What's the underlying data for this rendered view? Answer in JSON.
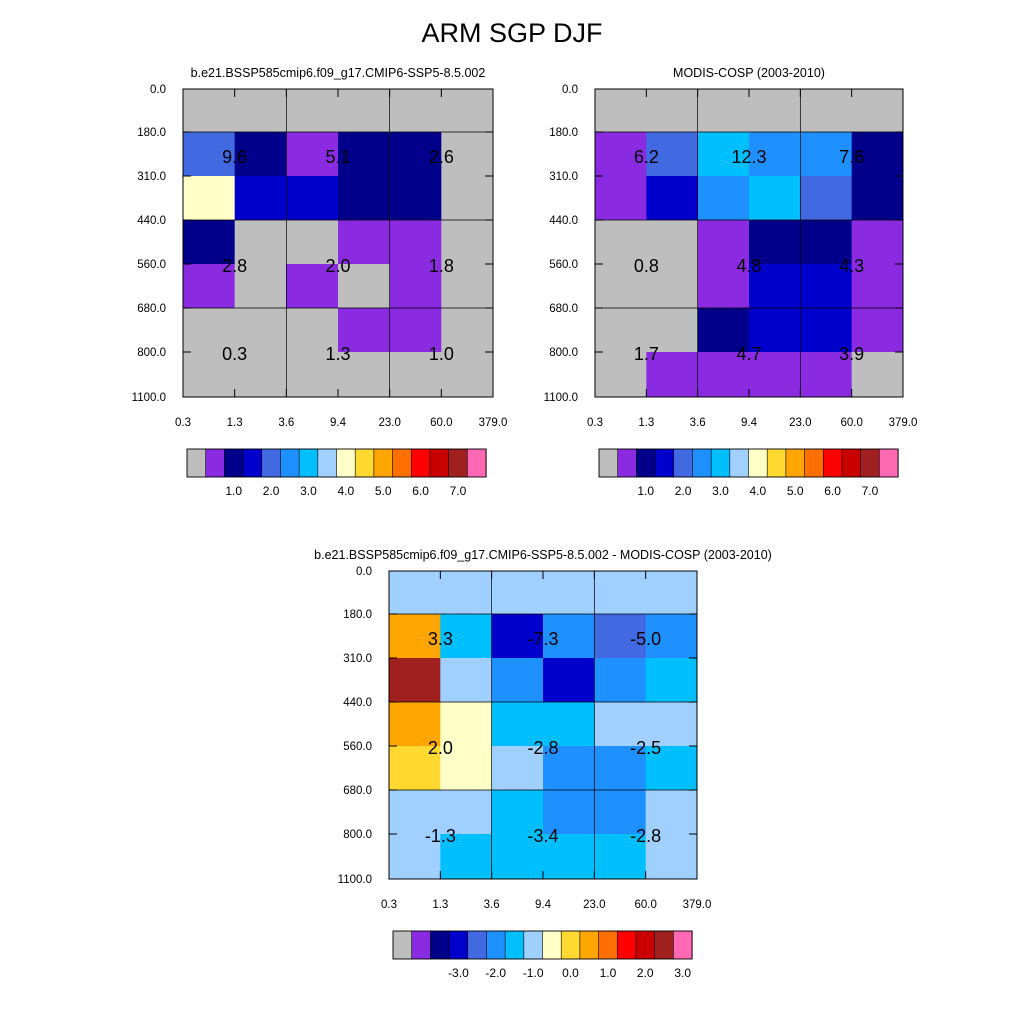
{
  "title": "ARM SGP DJF",
  "y_ticks": [
    "0.0",
    "180.0",
    "310.0",
    "440.0",
    "560.0",
    "680.0",
    "800.0",
    "1100.0"
  ],
  "x_ticks": [
    "0.3",
    "1.3",
    "3.6",
    "9.4",
    "23.0",
    "60.0",
    "379.0"
  ],
  "abs_palette": [
    "#bebebe",
    "#8a2be2",
    "#00008b",
    "#0000cd",
    "#4169e1",
    "#1e90ff",
    "#00bfff",
    "#a0d0ff",
    "#ffffc8",
    "#ffd930",
    "#ffa500",
    "#ff6f00",
    "#ff0000",
    "#c80000",
    "#a02020",
    "#ff69b4"
  ],
  "abs_labels": [
    "1.0",
    "2.0",
    "3.0",
    "4.0",
    "5.0",
    "6.0",
    "7.0"
  ],
  "diff_palette": [
    "#bebebe",
    "#8a2be2",
    "#00008b",
    "#0000cd",
    "#4169e1",
    "#1e90ff",
    "#00bfff",
    "#a0d0ff",
    "#ffffc8",
    "#ffd930",
    "#ffa500",
    "#ff6f00",
    "#ff0000",
    "#c80000",
    "#a02020",
    "#ff69b4"
  ],
  "diff_labels": [
    "-3.0",
    "-2.0",
    "-1.0",
    "0.0",
    "1.0",
    "2.0",
    "3.0"
  ],
  "chart_data": [
    {
      "type": "heatmap",
      "title": "b.e21.BSSP585cmip6.f09_g17.CMIP6-SSP5-8.5.002",
      "x_bins": [
        0.3,
        1.3,
        3.6,
        9.4,
        23.0,
        60.0,
        379.0
      ],
      "y_bins": [
        0.0,
        180.0,
        310.0,
        440.0,
        560.0,
        680.0,
        800.0,
        1100.0
      ],
      "cell_color_index": [
        [
          0,
          0,
          0,
          0,
          0,
          0
        ],
        [
          4,
          2,
          1,
          2,
          2,
          0
        ],
        [
          8,
          3,
          3,
          2,
          2,
          0
        ],
        [
          2,
          0,
          0,
          1,
          1,
          0
        ],
        [
          1,
          0,
          1,
          0,
          1,
          0
        ],
        [
          0,
          0,
          0,
          1,
          1,
          0
        ],
        [
          0,
          0,
          0,
          0,
          0,
          0
        ]
      ],
      "group_values": [
        [
          "9.6",
          "5.1",
          "2.6"
        ],
        [
          "2.8",
          "2.0",
          "1.8"
        ],
        [
          "0.3",
          "1.3",
          "1.0"
        ]
      ],
      "colorbar_labels": [
        "1.0",
        "2.0",
        "3.0",
        "4.0",
        "5.0",
        "6.0",
        "7.0"
      ]
    },
    {
      "type": "heatmap",
      "title": "MODIS-COSP (2003-2010)",
      "x_bins": [
        0.3,
        1.3,
        3.6,
        9.4,
        23.0,
        60.0,
        379.0
      ],
      "y_bins": [
        0.0,
        180.0,
        310.0,
        440.0,
        560.0,
        680.0,
        800.0,
        1100.0
      ],
      "cell_color_index": [
        [
          0,
          0,
          0,
          0,
          0,
          0
        ],
        [
          1,
          4,
          6,
          5,
          5,
          2
        ],
        [
          1,
          3,
          5,
          6,
          4,
          2
        ],
        [
          0,
          0,
          1,
          2,
          2,
          1
        ],
        [
          0,
          0,
          1,
          3,
          3,
          1
        ],
        [
          0,
          0,
          2,
          3,
          3,
          1
        ],
        [
          0,
          1,
          1,
          1,
          1,
          0
        ]
      ],
      "group_values": [
        [
          "6.2",
          "12.3",
          "7.6"
        ],
        [
          "0.8",
          "4.8",
          "4.3"
        ],
        [
          "1.7",
          "4.7",
          "3.9"
        ]
      ],
      "colorbar_labels": [
        "1.0",
        "2.0",
        "3.0",
        "4.0",
        "5.0",
        "6.0",
        "7.0"
      ]
    },
    {
      "type": "heatmap",
      "title": "b.e21.BSSP585cmip6.f09_g17.CMIP6-SSP5-8.5.002 - MODIS-COSP (2003-2010)",
      "x_bins": [
        0.3,
        1.3,
        3.6,
        9.4,
        23.0,
        60.0,
        379.0
      ],
      "y_bins": [
        0.0,
        180.0,
        310.0,
        440.0,
        560.0,
        680.0,
        800.0,
        1100.0
      ],
      "cell_color_index": [
        [
          7,
          7,
          7,
          7,
          7,
          7
        ],
        [
          10,
          6,
          3,
          5,
          4,
          5
        ],
        [
          14,
          7,
          5,
          3,
          5,
          6
        ],
        [
          10,
          8,
          6,
          6,
          7,
          7
        ],
        [
          9,
          8,
          7,
          5,
          5,
          6
        ],
        [
          7,
          7,
          6,
          5,
          5,
          7
        ],
        [
          7,
          6,
          6,
          6,
          6,
          7
        ]
      ],
      "group_values": [
        [
          "3.3",
          "-7.3",
          "-5.0"
        ],
        [
          "2.0",
          "-2.8",
          "-2.5"
        ],
        [
          "-1.3",
          "-3.4",
          "-2.8"
        ]
      ],
      "colorbar_labels": [
        "-3.0",
        "-2.0",
        "-1.0",
        "0.0",
        "1.0",
        "2.0",
        "3.0"
      ]
    }
  ]
}
